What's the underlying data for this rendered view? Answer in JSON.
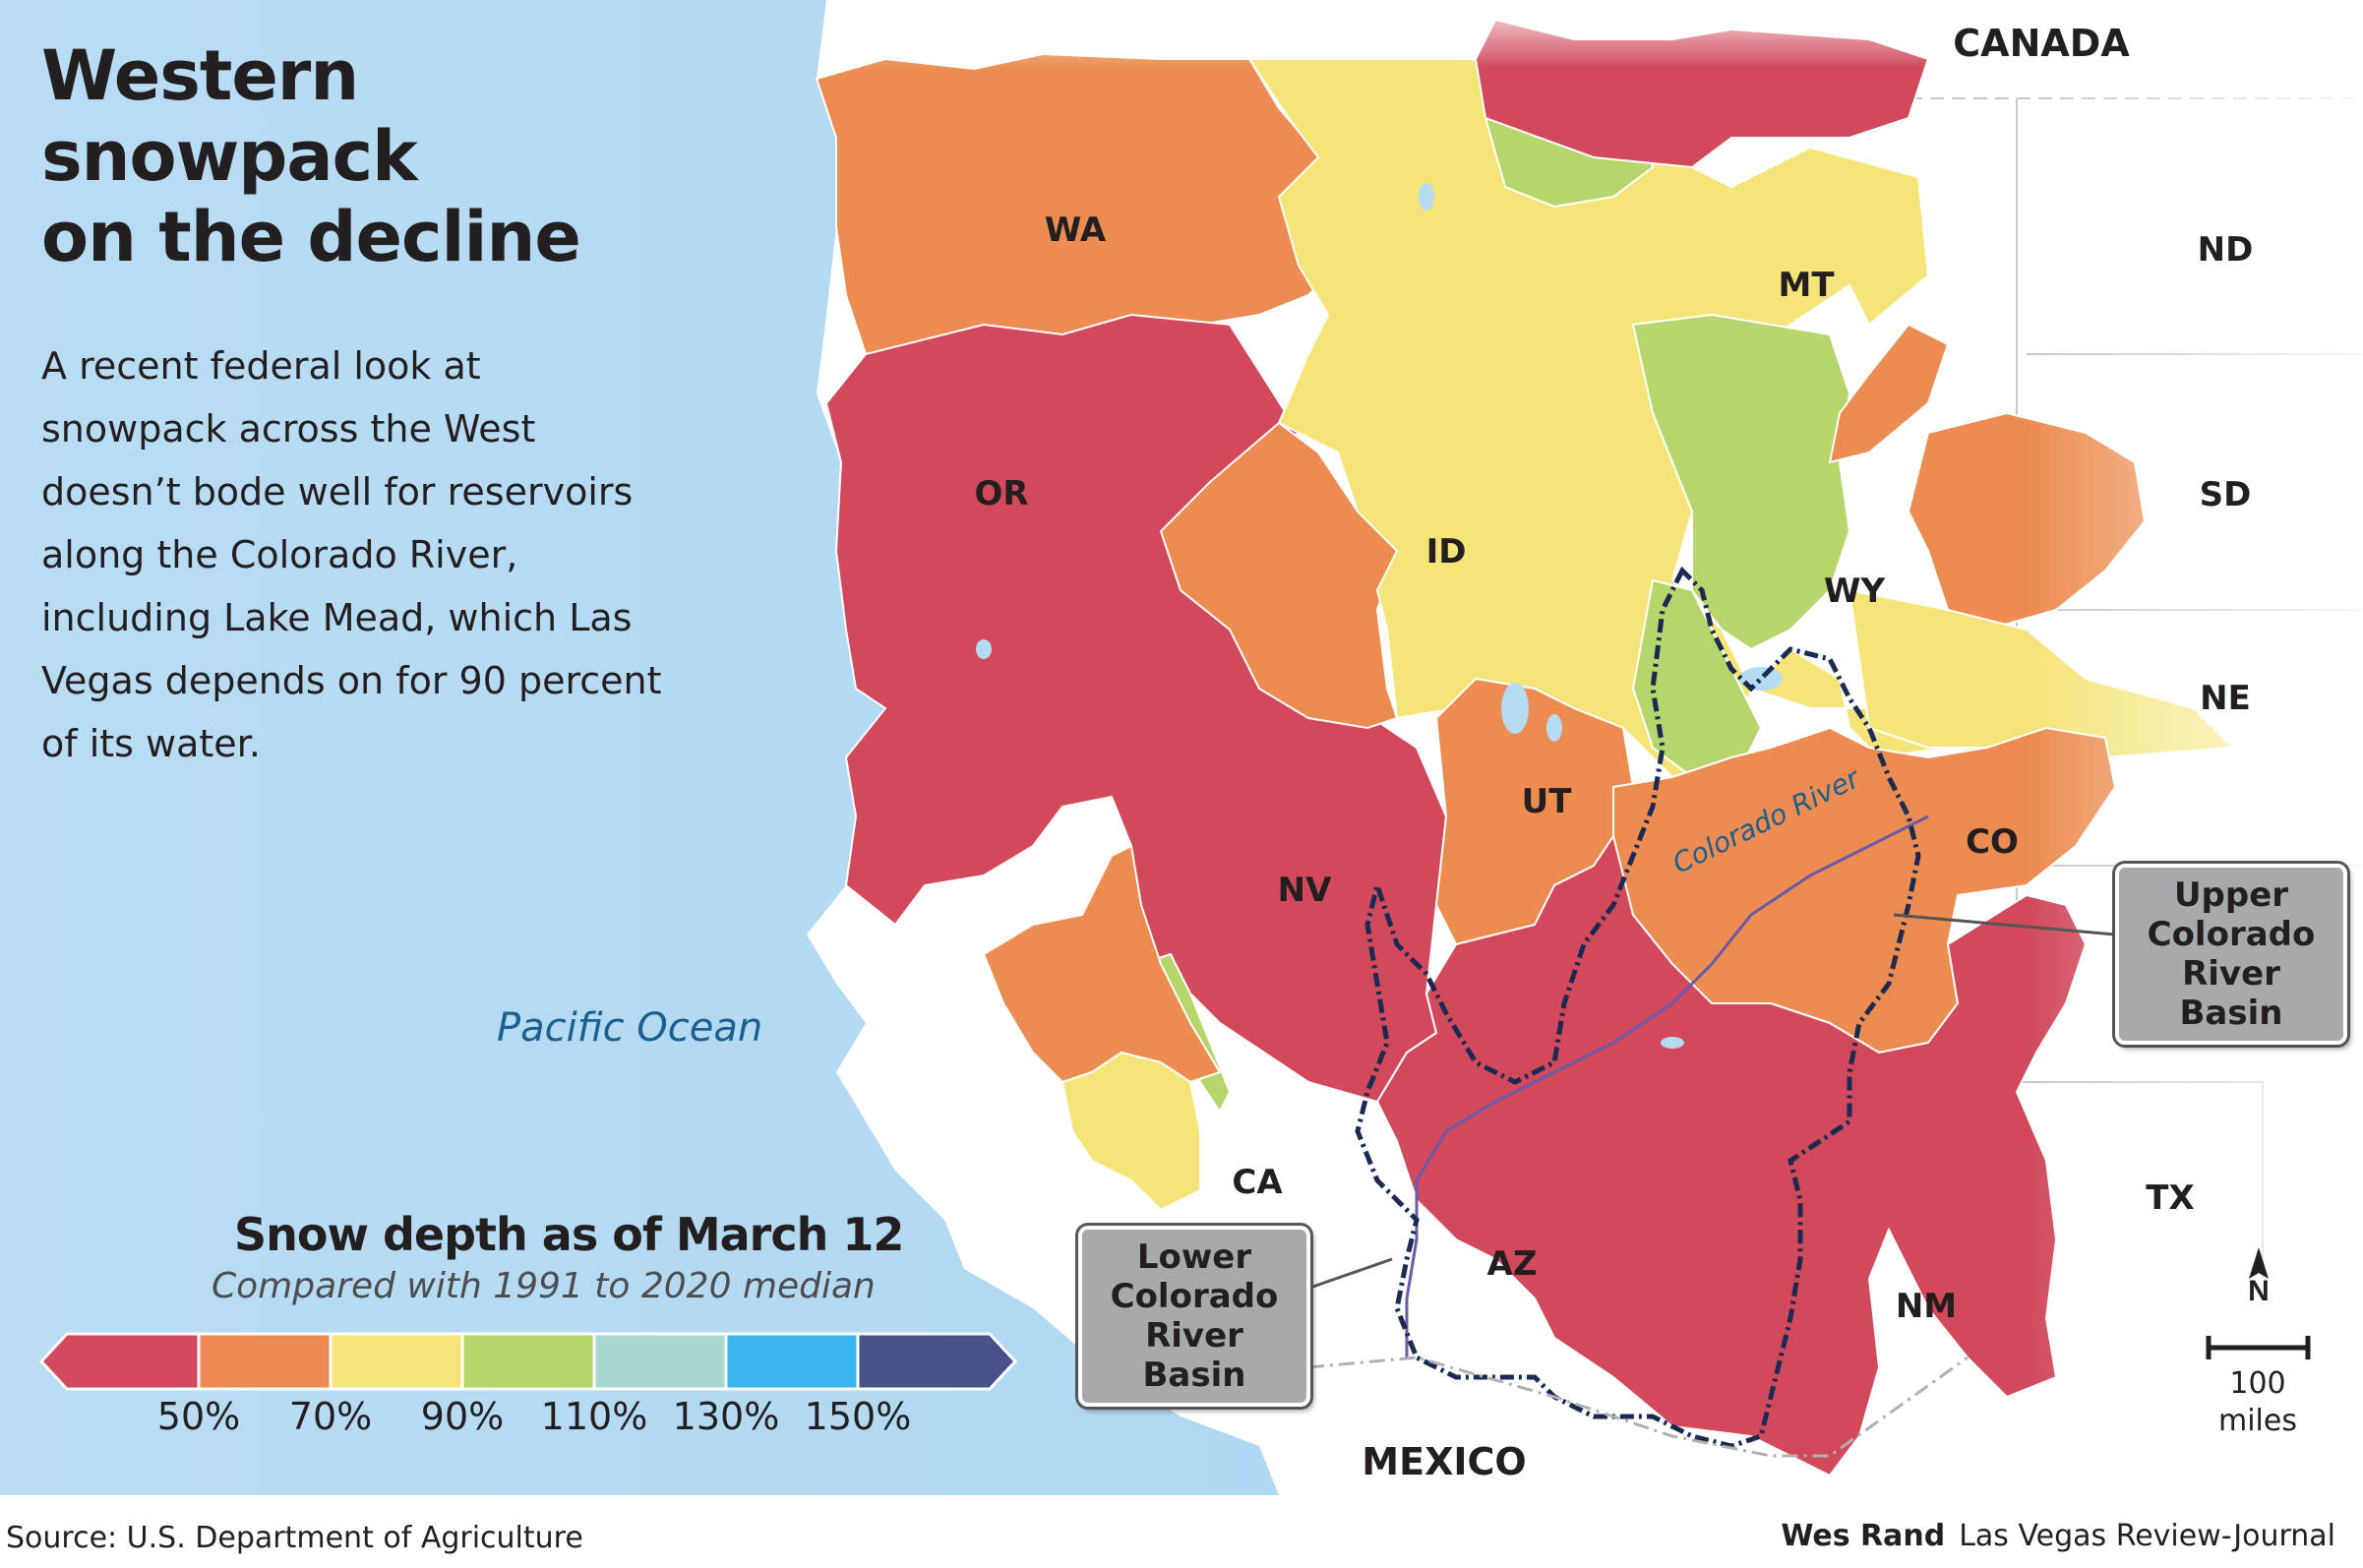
{
  "title_lines": [
    "Western",
    "snowpack",
    "on the decline"
  ],
  "description_lines": [
    "A recent federal look at",
    "snowpack across the West",
    "doesn’t bode well for reservoirs",
    "along the Colorado River,",
    "including Lake Mead, which Las",
    "Vegas depends on for 90 percent",
    "of its water."
  ],
  "ocean_label": "Pacific Ocean",
  "country_labels": {
    "canada": "CANADA",
    "mexico": "MEXICO"
  },
  "state_labels": {
    "wa": "WA",
    "or": "OR",
    "id": "ID",
    "mt": "MT",
    "wy": "WY",
    "nd": "ND",
    "sd": "SD",
    "ne": "NE",
    "nv": "NV",
    "ut": "UT",
    "co": "CO",
    "ca": "CA",
    "az": "AZ",
    "nm": "NM",
    "tx": "TX"
  },
  "river_label": "Colorado River",
  "callouts": {
    "upper": [
      "Upper",
      "Colorado",
      "River Basin"
    ],
    "lower": [
      "Lower",
      "Colorado",
      "River Basin"
    ]
  },
  "legend": {
    "title": "Snow depth as of March 12",
    "subtitle": "Compared with 1991 to 2020 median",
    "colors": [
      "#d1495b",
      "#ec8c50",
      "#f5e478",
      "#b6d56a",
      "#a8d8d0",
      "#3ab4ec",
      "#4a5189"
    ],
    "ticks": [
      "50%",
      "70%",
      "90%",
      "110%",
      "130%",
      "150%"
    ]
  },
  "north_arrow": "N",
  "scale": {
    "value": "100",
    "unit": "miles"
  },
  "source": "Source: U.S. Department of Agriculture",
  "credit": {
    "author": "Wes Rand",
    "outlet": "Las Vegas Review-Journal"
  },
  "colors": {
    "ocean": "#b5dbf3",
    "land": "#ffffff",
    "below_50": "#d1495b",
    "50_70": "#ec8c50",
    "70_90": "#f5e478",
    "90_110": "#b6d56a",
    "basin_outline": "#1b2a52"
  }
}
